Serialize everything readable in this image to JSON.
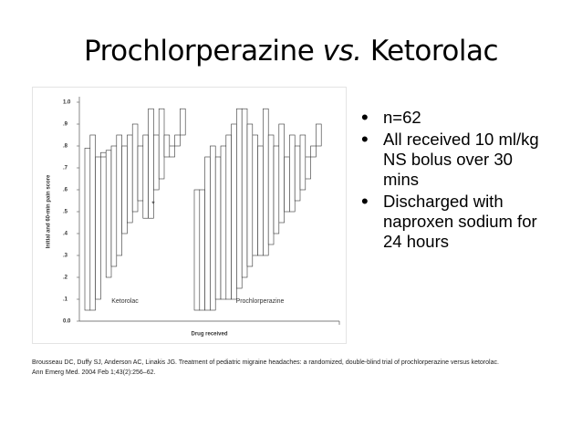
{
  "slide": {
    "title": [
      "Prochlorperazine",
      "vs.",
      "Ketorolac"
    ],
    "bullets": [
      "n=62",
      "All received 10 ml/kg NS bolus over 30 mins",
      "Discharged with naproxen sodium for 24 hours"
    ],
    "citation": [
      "Brousseau DC, Duffy SJ, Anderson AC, Linakis JG. Treatment of pediatric migraine headaches: a randomized, double-blind trial of prochlorperazine versus ketorolac.",
      "Ann Emerg Med. 2004 Feb 1;43(2):256–62."
    ]
  },
  "chart_data": {
    "type": "floating-bar",
    "ylabel": "Initial and 60-min pain score",
    "xlabel": "Drug received",
    "annotation": "*",
    "ylim": [
      0,
      1
    ],
    "yticks": [
      {
        "value": 0,
        "label": "0.0"
      },
      {
        "value": 0.1,
        "label": ".1"
      },
      {
        "value": 0.2,
        "label": ".2"
      },
      {
        "value": 0.3,
        "label": ".3"
      },
      {
        "value": 0.4,
        "label": ".4"
      },
      {
        "value": 0.5,
        "label": ".5"
      },
      {
        "value": 0.6,
        "label": ".6"
      },
      {
        "value": 0.7,
        "label": ".7"
      },
      {
        "value": 0.8,
        "label": ".8"
      },
      {
        "value": 0.9,
        "label": ".9"
      },
      {
        "value": 1,
        "label": "1.0"
      }
    ],
    "groups": [
      {
        "name": "Ketorolac",
        "initial": [
          0.79,
          0.85,
          0.75,
          0.77,
          0.78,
          0.8,
          0.85,
          0.8,
          0.85,
          0.9,
          0.8,
          0.85,
          0.97,
          0.85,
          0.97,
          0.85,
          0.8,
          0.85,
          0.97
        ],
        "final": [
          0.05,
          0.05,
          0.1,
          0.75,
          0.2,
          0.25,
          0.3,
          0.4,
          0.45,
          0.5,
          0.55,
          0.47,
          0.47,
          0.6,
          0.65,
          0.75,
          0.75,
          0.8,
          0.85
        ]
      },
      {
        "name": "Prochlorperazine",
        "initial": [
          0.6,
          0.6,
          0.75,
          0.8,
          0.75,
          0.8,
          0.85,
          0.9,
          0.97,
          0.97,
          0.9,
          0.85,
          0.8,
          0.97,
          0.85,
          0.8,
          0.9,
          0.75,
          0.85,
          0.8,
          0.85,
          0.75,
          0.8,
          0.9,
          0.85
        ],
        "final": [
          0.05,
          0.05,
          0.05,
          0.05,
          0.1,
          0.1,
          0.1,
          0.1,
          0.15,
          0.2,
          0.25,
          0.3,
          0.3,
          0.3,
          0.35,
          0.4,
          0.45,
          0.5,
          0.5,
          0.55,
          0.6,
          0.65,
          0.75,
          0.8,
          0.85
        ]
      }
    ]
  }
}
